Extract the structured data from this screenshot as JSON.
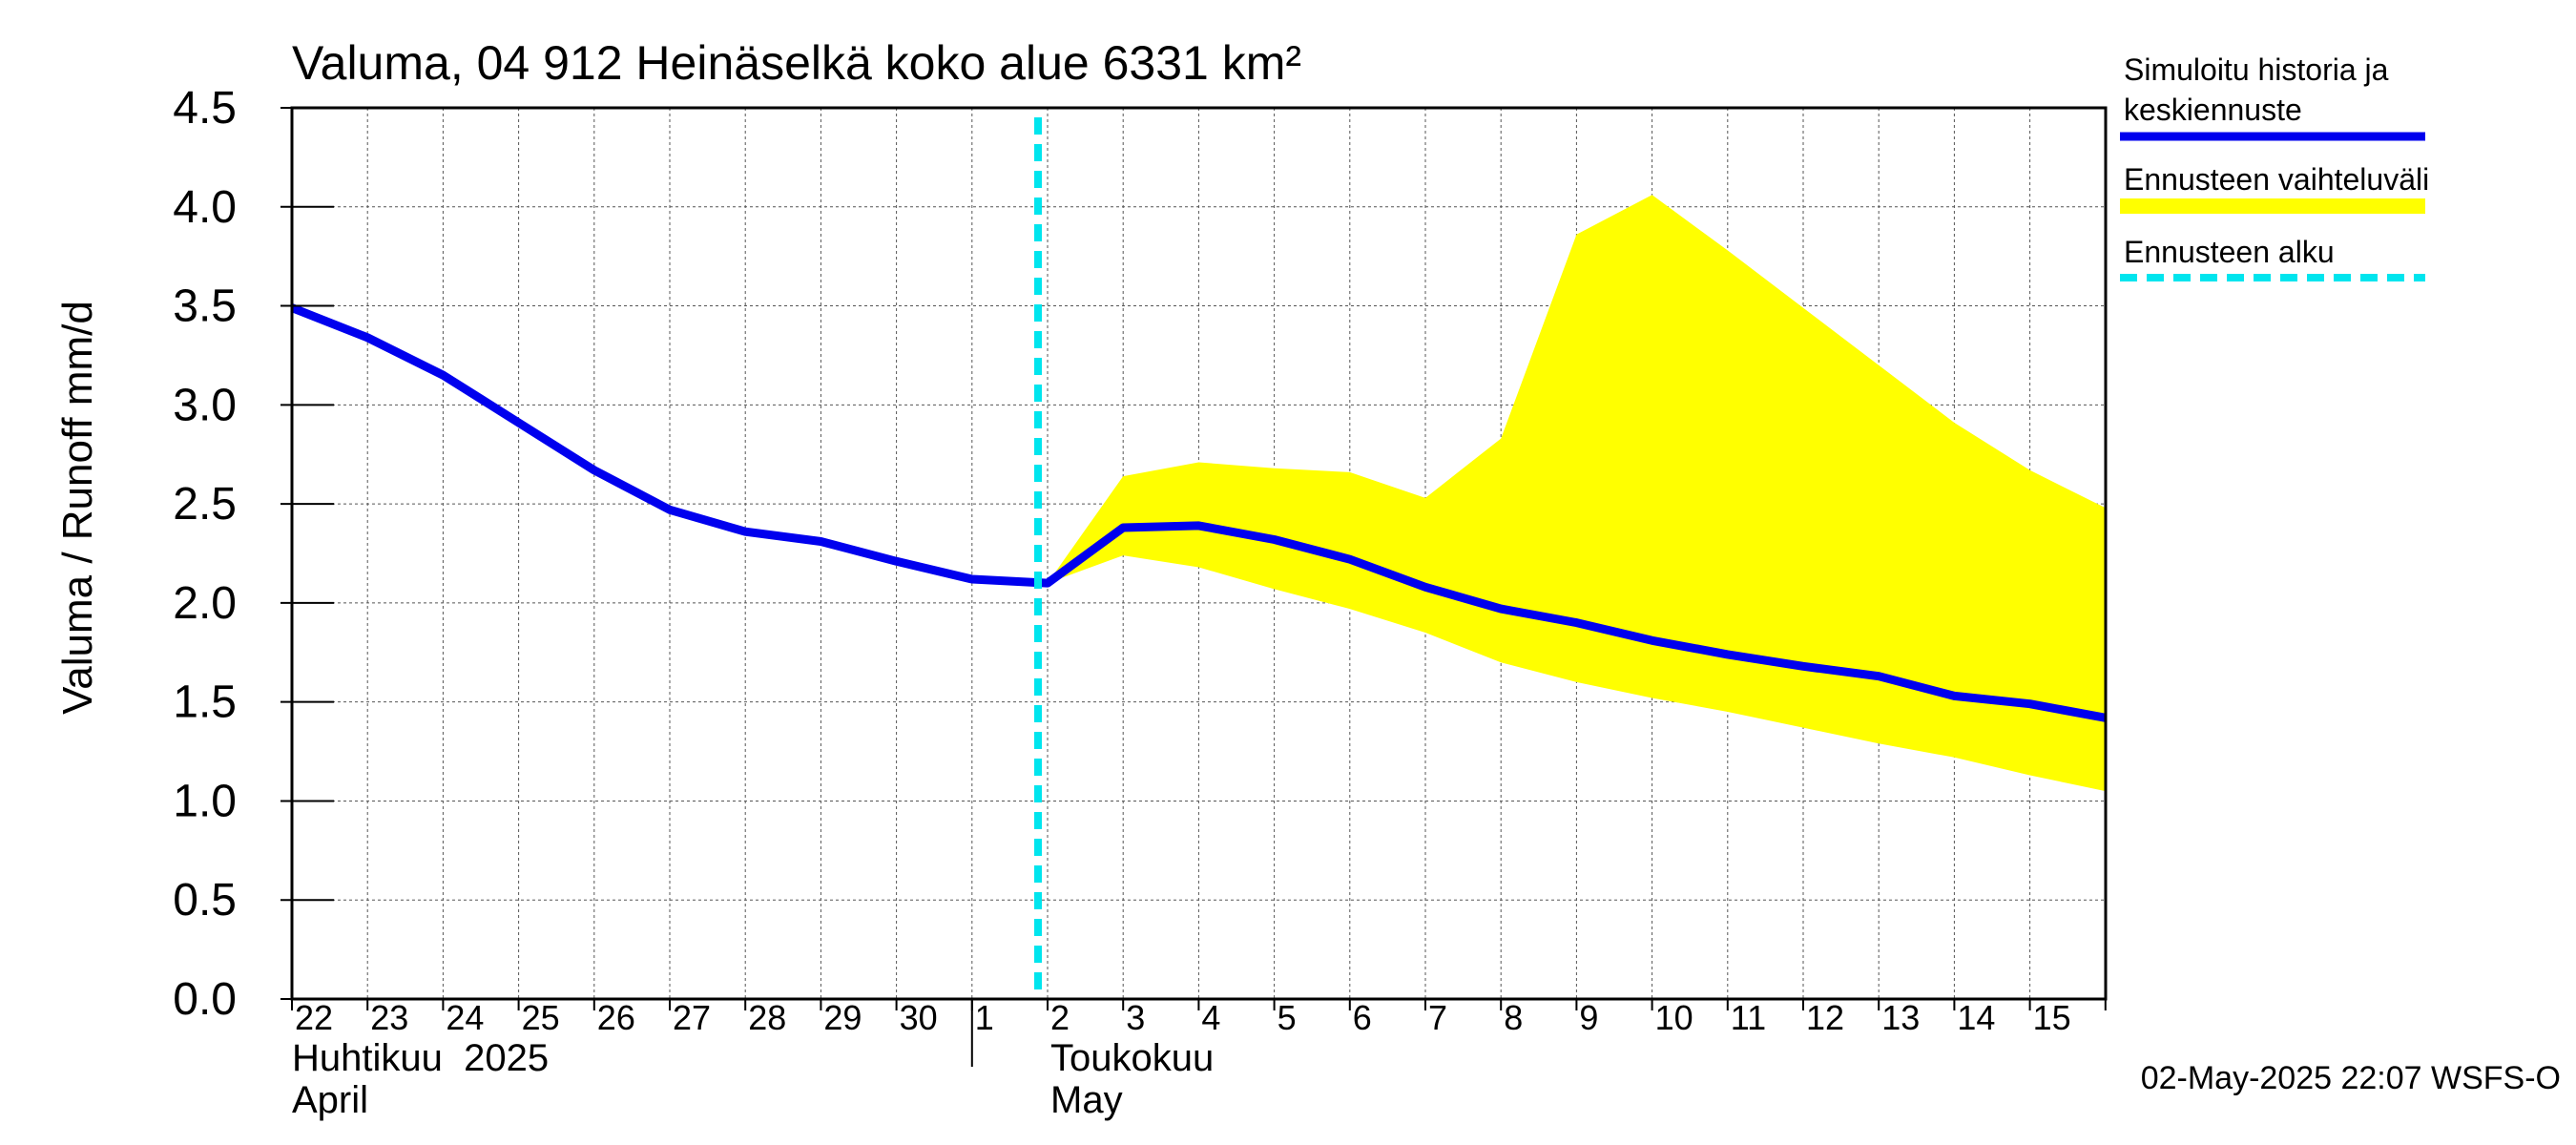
{
  "chart_data": {
    "type": "area",
    "title": "Valuma, 04 912 Heinäselkä koko alue 6331 km²",
    "ylabel": "Valuma / Runoff     mm/d",
    "ylim": [
      0,
      4.5
    ],
    "yticks": [
      "0.0",
      "0.5",
      "1.0",
      "1.5",
      "2.0",
      "2.5",
      "3.0",
      "3.5",
      "4.0",
      "4.5"
    ],
    "x_tick_labels": [
      "22",
      "23",
      "24",
      "25",
      "26",
      "27",
      "28",
      "29",
      "30",
      "1",
      "2",
      "3",
      "4",
      "5",
      "6",
      "7",
      "8",
      "9",
      "10",
      "11",
      "12",
      "13",
      "14",
      "15"
    ],
    "month_labels": [
      {
        "line1": "Huhtikuu  2025",
        "line2": "April"
      },
      {
        "line1": "Toukokuu",
        "line2": "May"
      }
    ],
    "grid": true,
    "forecast_start": "2025-05-02",
    "series": [
      {
        "name": "Simuloitu historia ja keskiennuste",
        "color": "#0000ee",
        "x": [
          "2025-04-22",
          "2025-04-23",
          "2025-04-24",
          "2025-04-25",
          "2025-04-26",
          "2025-04-27",
          "2025-04-28",
          "2025-04-29",
          "2025-04-30",
          "2025-05-01",
          "2025-05-02",
          "2025-05-03",
          "2025-05-04",
          "2025-05-05",
          "2025-05-06",
          "2025-05-07",
          "2025-05-08",
          "2025-05-09",
          "2025-05-10",
          "2025-05-11",
          "2025-05-12",
          "2025-05-13",
          "2025-05-14",
          "2025-05-15",
          "2025-05-16"
        ],
        "y": [
          3.49,
          3.34,
          3.15,
          2.91,
          2.67,
          2.47,
          2.36,
          2.31,
          2.21,
          2.12,
          2.1,
          2.38,
          2.39,
          2.32,
          2.22,
          2.08,
          1.97,
          1.9,
          1.81,
          1.74,
          1.68,
          1.63,
          1.53,
          1.49,
          1.42
        ]
      },
      {
        "name": "Ennusteen vaihteluväli",
        "color": "#ffff00",
        "x": [
          "2025-05-02",
          "2025-05-03",
          "2025-05-04",
          "2025-05-05",
          "2025-05-06",
          "2025-05-07",
          "2025-05-08",
          "2025-05-09",
          "2025-05-10",
          "2025-05-11",
          "2025-05-12",
          "2025-05-13",
          "2025-05-14",
          "2025-05-15",
          "2025-05-16"
        ],
        "upper": [
          2.1,
          2.64,
          2.71,
          2.68,
          2.66,
          2.53,
          2.83,
          3.86,
          4.06,
          3.78,
          3.49,
          3.2,
          2.91,
          2.67,
          2.48
        ],
        "lower": [
          2.1,
          2.24,
          2.18,
          2.07,
          1.97,
          1.85,
          1.7,
          1.6,
          1.52,
          1.45,
          1.37,
          1.29,
          1.22,
          1.13,
          1.05
        ]
      }
    ],
    "legend": [
      {
        "label_line1": "Simuloitu historia ja",
        "label_line2": "keskiennuste",
        "style": "line",
        "color": "#0000ee"
      },
      {
        "label_line1": "Ennusteen vaihteluväli",
        "label_line2": "",
        "style": "band",
        "color": "#ffff00"
      },
      {
        "label_line1": "Ennusteen alku",
        "label_line2": "",
        "style": "dashed",
        "color": "#00e5ee"
      }
    ],
    "legend_position": "right",
    "footer": "02-May-2025 22:07 WSFS-O"
  }
}
